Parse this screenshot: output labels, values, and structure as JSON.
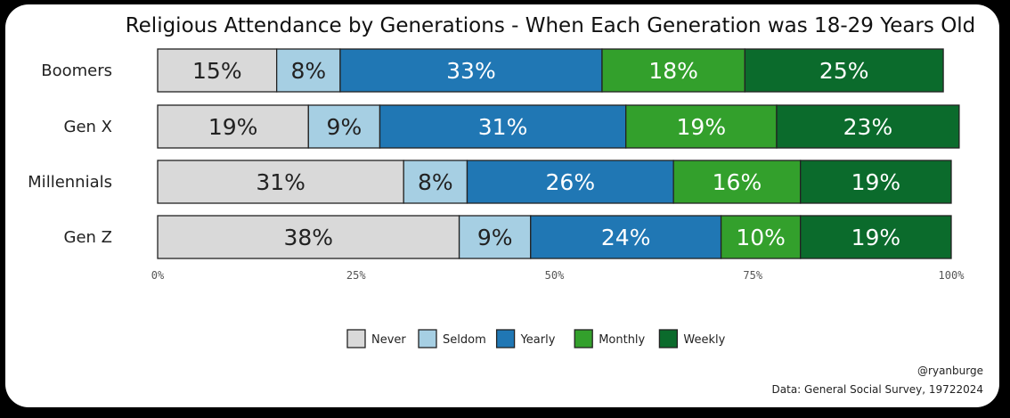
{
  "chart_data": {
    "type": "bar",
    "orientation": "horizontal",
    "stacked": true,
    "title": "Religious Attendance by Generations - When Each Generation was 18-29 Years Old",
    "categories": [
      "Boomers",
      "Gen X",
      "Millennials",
      "Gen Z"
    ],
    "series": [
      {
        "name": "Never",
        "color": "#d9d9d9",
        "label_color": "#222222",
        "values": [
          15,
          19,
          31,
          38
        ]
      },
      {
        "name": "Seldom",
        "color": "#a6cfe3",
        "label_color": "#222222",
        "values": [
          8,
          9,
          8,
          9
        ]
      },
      {
        "name": "Yearly",
        "color": "#2077b4",
        "label_color": "#ffffff",
        "values": [
          33,
          31,
          26,
          24
        ]
      },
      {
        "name": "Monthly",
        "color": "#33a02c",
        "label_color": "#ffffff",
        "values": [
          18,
          19,
          16,
          10
        ]
      },
      {
        "name": "Weekly",
        "color": "#0b6b2c",
        "label_color": "#ffffff",
        "values": [
          25,
          23,
          19,
          19
        ]
      }
    ],
    "value_suffix": "%",
    "x_ticks": [
      "0%",
      "25%",
      "50%",
      "75%",
      "100%"
    ],
    "xlim": [
      0,
      100
    ],
    "legend_position": "bottom-center",
    "grid": false
  },
  "credits": {
    "handle": "@ryanburge",
    "source": "Data: General Social Survey, 19722024"
  }
}
